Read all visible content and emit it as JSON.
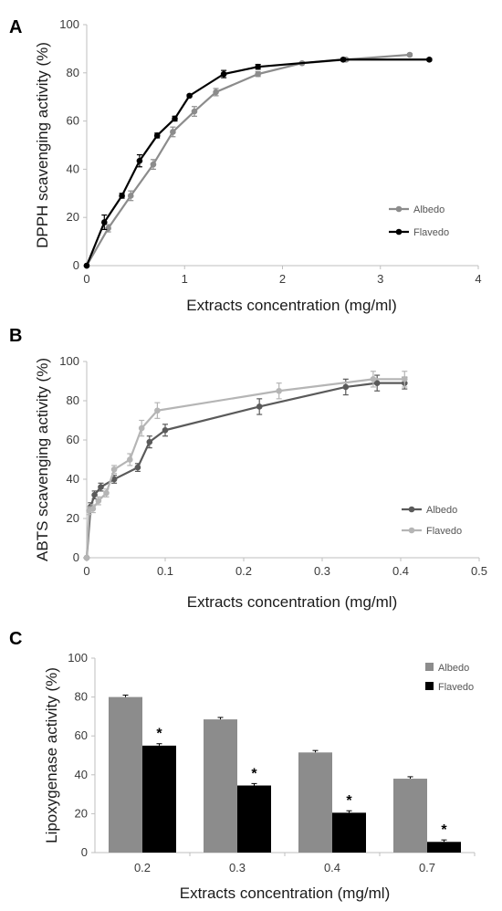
{
  "chart_data": [
    {
      "panel": "A",
      "type": "line",
      "xlabel": "Extracts concentration (mg/ml)",
      "ylabel": "DPPH scavenging activity (%)",
      "xlim": [
        0,
        4
      ],
      "ylim": [
        0,
        100
      ],
      "xticks": [
        0,
        1,
        2,
        3,
        4
      ],
      "yticks": [
        0,
        20,
        40,
        60,
        80,
        100
      ],
      "legend_position": "right",
      "grid": false,
      "series": [
        {
          "name": "Albedo",
          "color": "#8c8c8c",
          "points": [
            [
              0,
              0
            ],
            [
              0.22,
              15.5
            ],
            [
              0.45,
              29
            ],
            [
              0.68,
              42
            ],
            [
              0.88,
              55.5
            ],
            [
              1.1,
              64
            ],
            [
              1.32,
              72
            ],
            [
              1.75,
              79.5
            ],
            [
              2.2,
              84
            ],
            [
              2.65,
              85.5
            ],
            [
              3.3,
              87.5
            ]
          ],
          "errors": [
            0,
            1.5,
            2,
            2,
            2,
            2,
            1.5,
            1,
            0.5,
            0.5,
            0.5
          ]
        },
        {
          "name": "Flavedo",
          "color": "#000000",
          "points": [
            [
              0,
              0
            ],
            [
              0.18,
              18
            ],
            [
              0.36,
              29
            ],
            [
              0.54,
              43.5
            ],
            [
              0.72,
              54
            ],
            [
              0.9,
              61
            ],
            [
              1.05,
              70.5
            ],
            [
              1.4,
              79.5
            ],
            [
              1.75,
              82.5
            ],
            [
              2.62,
              85.5
            ],
            [
              3.5,
              85.5
            ]
          ],
          "errors": [
            0,
            3,
            1,
            2.5,
            1,
            1,
            0.5,
            1.5,
            1,
            0.5,
            0.5
          ]
        }
      ]
    },
    {
      "panel": "B",
      "type": "line",
      "xlabel": "Extracts concentration (mg/ml)",
      "ylabel": "ABTS scavenging activity (%)",
      "xlim": [
        0,
        0.5
      ],
      "ylim": [
        0,
        100
      ],
      "xticks": [
        "0",
        "0.1",
        "0.2",
        "0.3",
        "0.4",
        "0.5"
      ],
      "yticks": [
        0,
        20,
        40,
        60,
        80,
        100
      ],
      "legend_position": "right",
      "grid": false,
      "series": [
        {
          "name": "Albedo",
          "color": "#5a5a5a",
          "points": [
            [
              0,
              0
            ],
            [
              0.005,
              26
            ],
            [
              0.01,
              32
            ],
            [
              0.018,
              36
            ],
            [
              0.035,
              40
            ],
            [
              0.065,
              46
            ],
            [
              0.08,
              59
            ],
            [
              0.1,
              65
            ],
            [
              0.22,
              77
            ],
            [
              0.33,
              87
            ],
            [
              0.37,
              89
            ],
            [
              0.405,
              89
            ]
          ],
          "errors": [
            0,
            2,
            2,
            2,
            2,
            2,
            3,
            3,
            4,
            4,
            4,
            3
          ]
        },
        {
          "name": "Flavedo",
          "color": "#b5b5b5",
          "points": [
            [
              0,
              0
            ],
            [
              0.003,
              24
            ],
            [
              0.008,
              25
            ],
            [
              0.015,
              29
            ],
            [
              0.025,
              33
            ],
            [
              0.035,
              45
            ],
            [
              0.055,
              50
            ],
            [
              0.07,
              66
            ],
            [
              0.09,
              75
            ],
            [
              0.245,
              85
            ],
            [
              0.365,
              91
            ],
            [
              0.405,
              91
            ]
          ],
          "errors": [
            0,
            2,
            2,
            2,
            2,
            2,
            3,
            4,
            4,
            4,
            4,
            4
          ]
        }
      ]
    },
    {
      "panel": "C",
      "type": "bar",
      "xlabel": "Extracts concentration (mg/ml)",
      "ylabel": "Lipoxygenase activity (%)",
      "ylim": [
        0,
        100
      ],
      "yticks": [
        0,
        20,
        40,
        60,
        80,
        100
      ],
      "categories": [
        "0.2",
        "0.3",
        "0.4",
        "0.7"
      ],
      "legend_position": "top-right",
      "grid": false,
      "significance_marker": "*",
      "series": [
        {
          "name": "Albedo",
          "color": "#8c8c8c",
          "values": [
            80,
            68.5,
            51.5,
            38
          ],
          "errors": [
            1,
            1,
            1,
            1
          ]
        },
        {
          "name": "Flavedo",
          "color": "#000000",
          "values": [
            55,
            34.5,
            20.5,
            5.5
          ],
          "errors": [
            1,
            1,
            1,
            1
          ]
        }
      ]
    }
  ]
}
